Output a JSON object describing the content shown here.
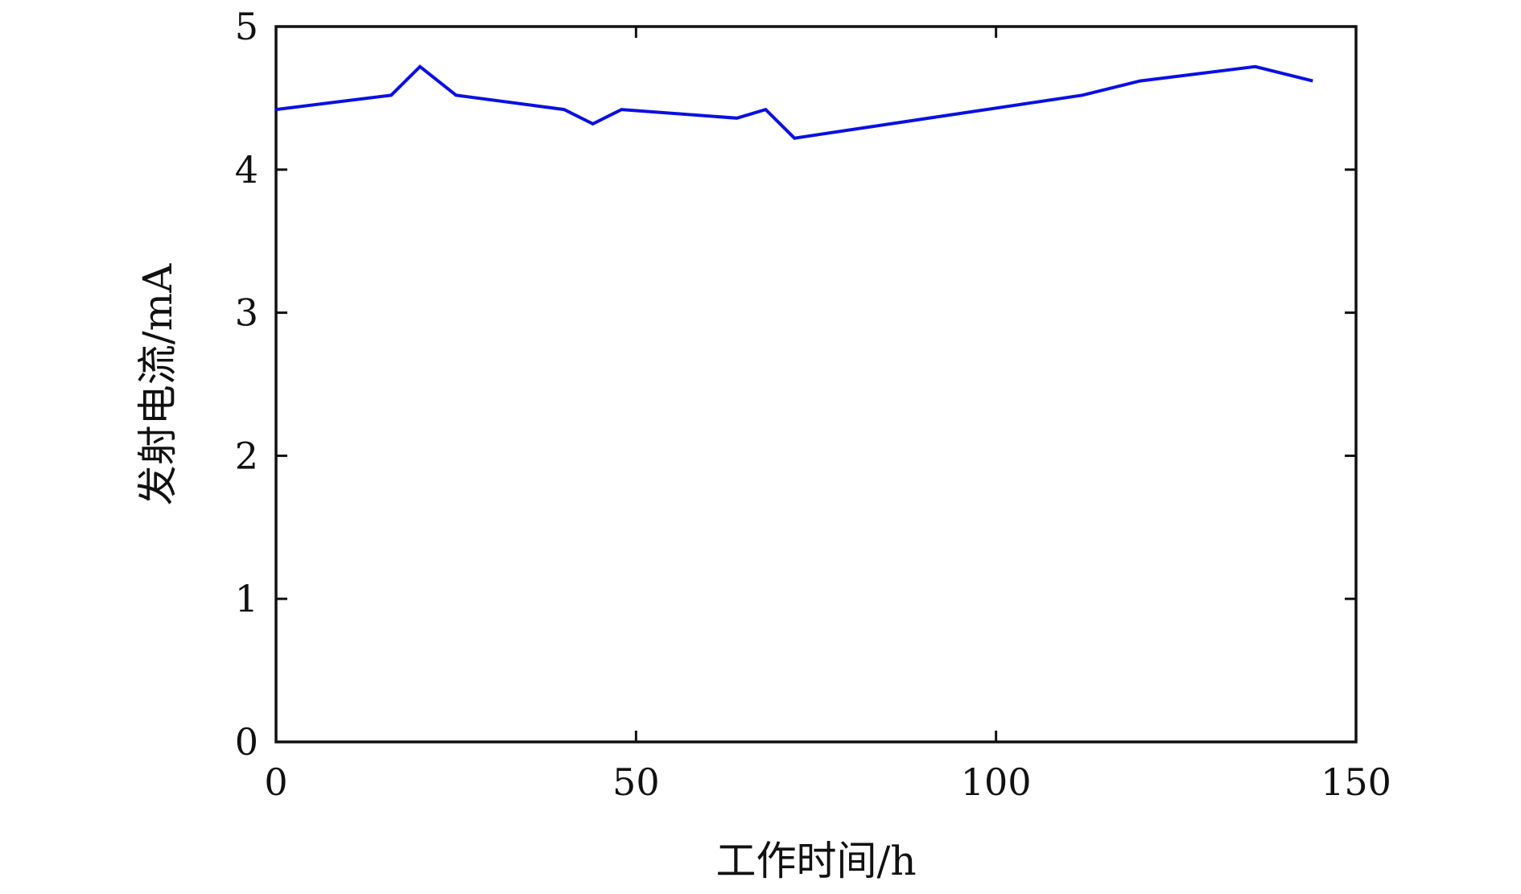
{
  "chart_data": {
    "type": "line",
    "title": "",
    "xlabel": "工作时间/h",
    "ylabel": "发射电流/mA",
    "xlim": [
      0,
      150
    ],
    "ylim": [
      0,
      5
    ],
    "x_ticks": [
      0,
      50,
      100,
      150
    ],
    "y_ticks": [
      0,
      1,
      2,
      3,
      4,
      5
    ],
    "grid": false,
    "legend": "none",
    "series": [
      {
        "color": "#0a10e0",
        "x": [
          0,
          16,
          20,
          25,
          40,
          44,
          48,
          64,
          68,
          72,
          112,
          120,
          136,
          144
        ],
        "y": [
          4.42,
          4.52,
          4.72,
          4.52,
          4.42,
          4.32,
          4.42,
          4.36,
          4.42,
          4.22,
          4.52,
          4.62,
          4.72,
          4.62
        ]
      }
    ]
  }
}
